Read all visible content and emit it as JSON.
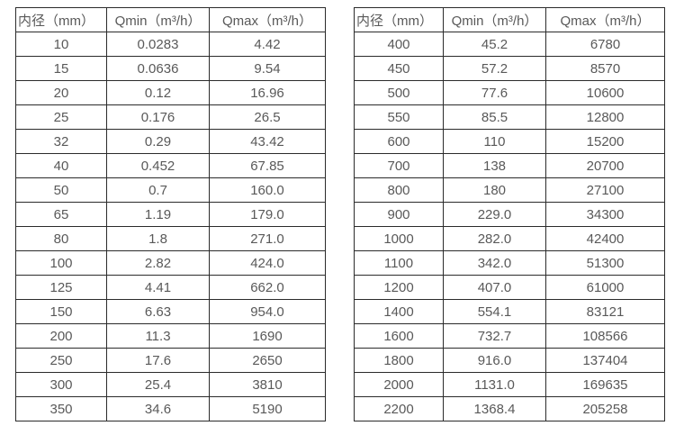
{
  "colors": {
    "background": "#ffffff",
    "border": "#2b2b2b",
    "text": "#595959"
  },
  "chart_data": [
    {
      "type": "table",
      "title": "",
      "columns": [
        "内径（mm）",
        "Qmin（m³/h）",
        "Qmax（m³/h）"
      ],
      "rows": [
        [
          "10",
          "0.0283",
          "4.42"
        ],
        [
          "15",
          "0.0636",
          "9.54"
        ],
        [
          "20",
          "0.12",
          "16.96"
        ],
        [
          "25",
          "0.176",
          "26.5"
        ],
        [
          "32",
          "0.29",
          "43.42"
        ],
        [
          "40",
          "0.452",
          "67.85"
        ],
        [
          "50",
          "0.7",
          "160.0"
        ],
        [
          "65",
          "1.19",
          "179.0"
        ],
        [
          "80",
          "1.8",
          "271.0"
        ],
        [
          "100",
          "2.82",
          "424.0"
        ],
        [
          "125",
          "4.41",
          "662.0"
        ],
        [
          "150",
          "6.63",
          "954.0"
        ],
        [
          "200",
          "11.3",
          "1690"
        ],
        [
          "250",
          "17.6",
          "2650"
        ],
        [
          "300",
          "25.4",
          "3810"
        ],
        [
          "350",
          "34.6",
          "5190"
        ]
      ]
    },
    {
      "type": "table",
      "title": "",
      "columns": [
        "内径（mm）",
        "Qmin（m³/h）",
        "Qmax（m³/h）"
      ],
      "rows": [
        [
          "400",
          "45.2",
          "6780"
        ],
        [
          "450",
          "57.2",
          "8570"
        ],
        [
          "500",
          "77.6",
          "10600"
        ],
        [
          "550",
          "85.5",
          "12800"
        ],
        [
          "600",
          "110",
          "15200"
        ],
        [
          "700",
          "138",
          "20700"
        ],
        [
          "800",
          "180",
          "27100"
        ],
        [
          "900",
          "229.0",
          "34300"
        ],
        [
          "1000",
          "282.0",
          "42400"
        ],
        [
          "1100",
          "342.0",
          "51300"
        ],
        [
          "1200",
          "407.0",
          "61000"
        ],
        [
          "1400",
          "554.1",
          "83121"
        ],
        [
          "1600",
          "732.7",
          "108566"
        ],
        [
          "1800",
          "916.0",
          "137404"
        ],
        [
          "2000",
          "1131.0",
          "169635"
        ],
        [
          "2200",
          "1368.4",
          "205258"
        ]
      ]
    }
  ]
}
